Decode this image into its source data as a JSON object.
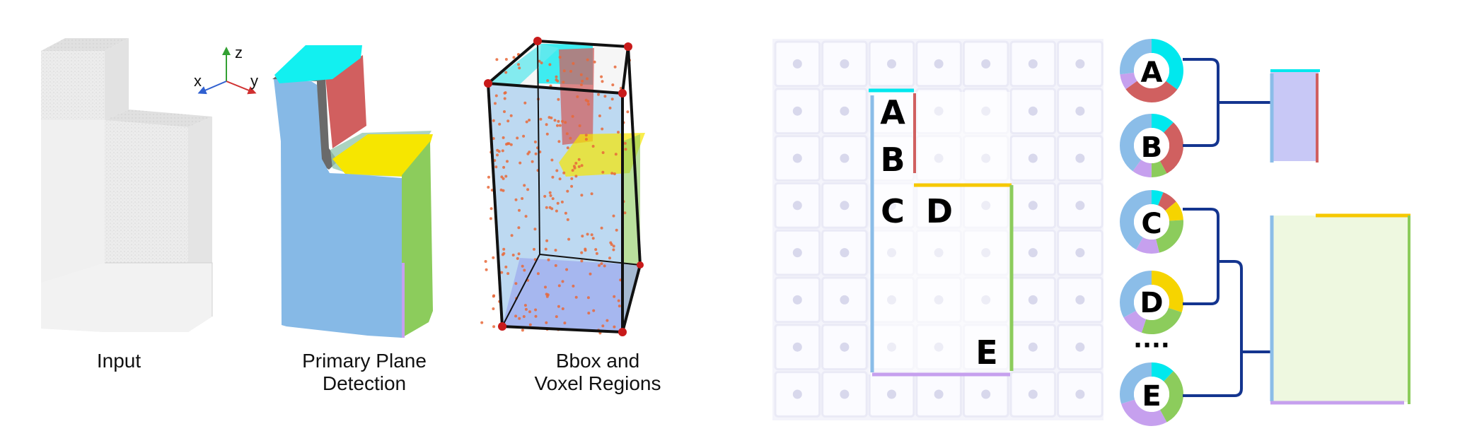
{
  "panels": {
    "input_caption": "Input",
    "plane_caption_line1": "Primary Plane",
    "plane_caption_line2": "Detection",
    "bbox_caption_line1": "Bbox and",
    "bbox_caption_line2": "Voxel Regions"
  },
  "axes": {
    "x": "x",
    "y": "y",
    "z": "z"
  },
  "grid": {
    "cols": 7,
    "rows": 8,
    "region_labels": [
      "A",
      "B",
      "C",
      "D",
      "E"
    ]
  },
  "circles": {
    "labels": [
      "A",
      "B",
      "C",
      "D",
      "E"
    ],
    "ellipsis": "····"
  },
  "colors": {
    "cyan": "#00e8ee",
    "red": "#d06060",
    "yellow": "#f6d400",
    "green": "#8ccc5c",
    "blue": "#8bbde8",
    "purple": "#c6a0ee",
    "navy": "#14358f",
    "lavender": "#c8c8f6",
    "mint": "#eef8e0"
  }
}
